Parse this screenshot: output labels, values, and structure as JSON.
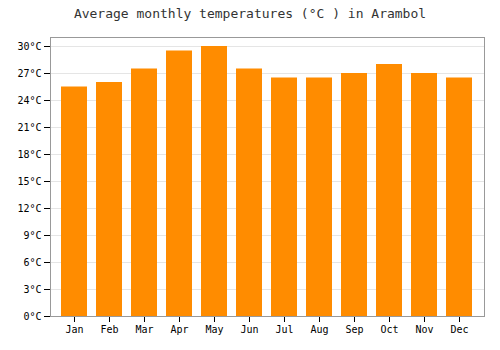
{
  "chart_data": {
    "type": "bar",
    "title": "Average monthly temperatures (°C ) in Arambol",
    "categories": [
      "Jan",
      "Feb",
      "Mar",
      "Apr",
      "May",
      "Jun",
      "Jul",
      "Aug",
      "Sep",
      "Oct",
      "Nov",
      "Dec"
    ],
    "values": [
      25.5,
      26.0,
      27.5,
      29.5,
      30.0,
      27.5,
      26.5,
      26.5,
      27.0,
      28.0,
      27.0,
      26.5
    ],
    "color": "#FF8C00",
    "ylim": [
      0,
      31
    ],
    "yticks": [
      {
        "value": 0,
        "label": "0°C"
      },
      {
        "value": 3,
        "label": "3°C"
      },
      {
        "value": 6,
        "label": "6°C"
      },
      {
        "value": 9,
        "label": "9°C"
      },
      {
        "value": 12,
        "label": "12°C"
      },
      {
        "value": 15,
        "label": "15°C"
      },
      {
        "value": 18,
        "label": "18°C"
      },
      {
        "value": 21,
        "label": "21°C"
      },
      {
        "value": 24,
        "label": "24°C"
      },
      {
        "value": 27,
        "label": "27°C"
      },
      {
        "value": 30,
        "label": "30°C"
      }
    ],
    "grid": true
  }
}
